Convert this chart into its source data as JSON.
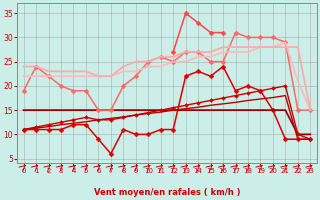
{
  "x": [
    0,
    1,
    2,
    3,
    4,
    5,
    6,
    7,
    8,
    9,
    10,
    11,
    12,
    13,
    14,
    15,
    16,
    17,
    18,
    19,
    20,
    21,
    22,
    23
  ],
  "series": [
    {
      "label": "dark_red_diamond_volatile",
      "y": [
        11,
        11,
        11,
        11,
        12,
        12,
        9,
        6,
        11,
        10,
        10,
        11,
        11,
        22,
        23,
        22,
        24,
        19,
        20,
        19,
        15,
        9,
        9,
        9
      ],
      "color": "#dd0000",
      "lw": 1.1,
      "marker": "D",
      "ms": 2.5
    },
    {
      "label": "dark_red_flat_then_10",
      "y": [
        15,
        15,
        15,
        15,
        15,
        15,
        15,
        15,
        15,
        15,
        15,
        15,
        15,
        15,
        15,
        15,
        15,
        15,
        15,
        15,
        15,
        15,
        10,
        10
      ],
      "color": "#990000",
      "lw": 1.3,
      "marker": null,
      "ms": 0
    },
    {
      "label": "dark_red_linear1",
      "y": [
        11,
        11.5,
        12,
        12.5,
        13,
        13.5,
        13,
        13,
        13.5,
        14,
        14.5,
        15,
        15.5,
        16,
        16.5,
        17,
        17.5,
        18,
        18.5,
        19,
        19.5,
        20,
        10,
        9
      ],
      "color": "#cc0000",
      "lw": 1.0,
      "marker": "D",
      "ms": 2.0
    },
    {
      "label": "dark_red_linear2",
      "y": [
        11,
        11.3,
        11.6,
        12,
        12.3,
        12.6,
        13,
        13.3,
        13.6,
        14,
        14.3,
        14.6,
        15,
        15.3,
        15.6,
        16,
        16.3,
        16.6,
        17,
        17.3,
        17.6,
        18,
        9,
        9
      ],
      "color": "#bb0000",
      "lw": 1.0,
      "marker": null,
      "ms": 0
    },
    {
      "label": "pink_diamond_volatile",
      "y": [
        19,
        24,
        22,
        20,
        19,
        19,
        15,
        15,
        20,
        22,
        25,
        26,
        25,
        27,
        27,
        25,
        25,
        31,
        30,
        30,
        30,
        29,
        15,
        15
      ],
      "color": "#ff6666",
      "lw": 1.1,
      "marker": "D",
      "ms": 2.5
    },
    {
      "label": "light_pink_linear",
      "y": [
        22,
        22,
        22,
        22,
        22,
        22,
        22,
        22,
        23,
        23,
        24,
        24,
        25,
        25,
        26,
        26,
        27,
        27,
        27,
        28,
        28,
        29,
        21,
        15
      ],
      "color": "#ffbbbb",
      "lw": 1.3,
      "marker": null,
      "ms": 0
    },
    {
      "label": "light_pink_linear2",
      "y": [
        24,
        24,
        23,
        23,
        23,
        23,
        22,
        22,
        24,
        25,
        25,
        26,
        26,
        27,
        27,
        27,
        28,
        28,
        28,
        28,
        28,
        28,
        28,
        15
      ],
      "color": "#ffaaaa",
      "lw": 1.3,
      "marker": null,
      "ms": 0
    },
    {
      "label": "pink_peak",
      "y": [
        null,
        null,
        null,
        null,
        null,
        null,
        null,
        null,
        null,
        null,
        null,
        null,
        27,
        35,
        33,
        31,
        31,
        null,
        null,
        null,
        null,
        null,
        null,
        null
      ],
      "color": "#ff4444",
      "lw": 1.1,
      "marker": "D",
      "ms": 2.5
    }
  ],
  "xlabel": "Vent moyen/en rafales ( km/h )",
  "xlim": [
    -0.5,
    23.5
  ],
  "ylim": [
    4,
    37
  ],
  "yticks": [
    5,
    10,
    15,
    20,
    25,
    30,
    35
  ],
  "xticks": [
    0,
    1,
    2,
    3,
    4,
    5,
    6,
    7,
    8,
    9,
    10,
    11,
    12,
    13,
    14,
    15,
    16,
    17,
    18,
    19,
    20,
    21,
    22,
    23
  ],
  "bg_color": "#cceee8",
  "grid_color": "#999999",
  "xlabel_color": "#cc0000",
  "tick_color": "#cc0000"
}
